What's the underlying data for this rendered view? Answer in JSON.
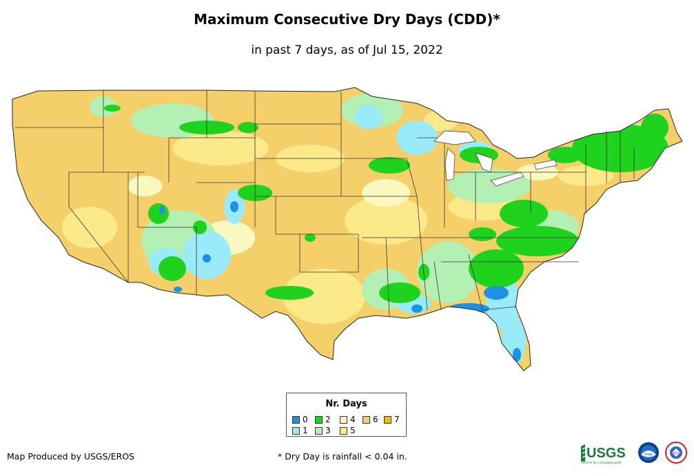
{
  "title": "Maximum Consecutive Dry Days (CDD)*",
  "subtitle": "in past 7 days, as of Jul 15, 2022",
  "legend": {
    "title": "Nr. Days",
    "items": [
      {
        "label": "0",
        "color": "#1e90e6"
      },
      {
        "label": "1",
        "color": "#99ebfa"
      },
      {
        "label": "2",
        "color": "#1ed21e"
      },
      {
        "label": "3",
        "color": "#b4f0b4"
      },
      {
        "label": "4",
        "color": "#f8f8c0"
      },
      {
        "label": "5",
        "color": "#fbe98a"
      },
      {
        "label": "6",
        "color": "#f5d06a"
      },
      {
        "label": "7",
        "color": "#f5bf00"
      }
    ]
  },
  "credit": "Map Produced by USGS/EROS",
  "footnote": "* Dry Day is rainfall < 0.04 in.",
  "logos": {
    "usgs_text": "USGS",
    "usgs_tagline": "science for a changing world",
    "noaa_text": "noaa",
    "nws_text": "NWS"
  }
}
